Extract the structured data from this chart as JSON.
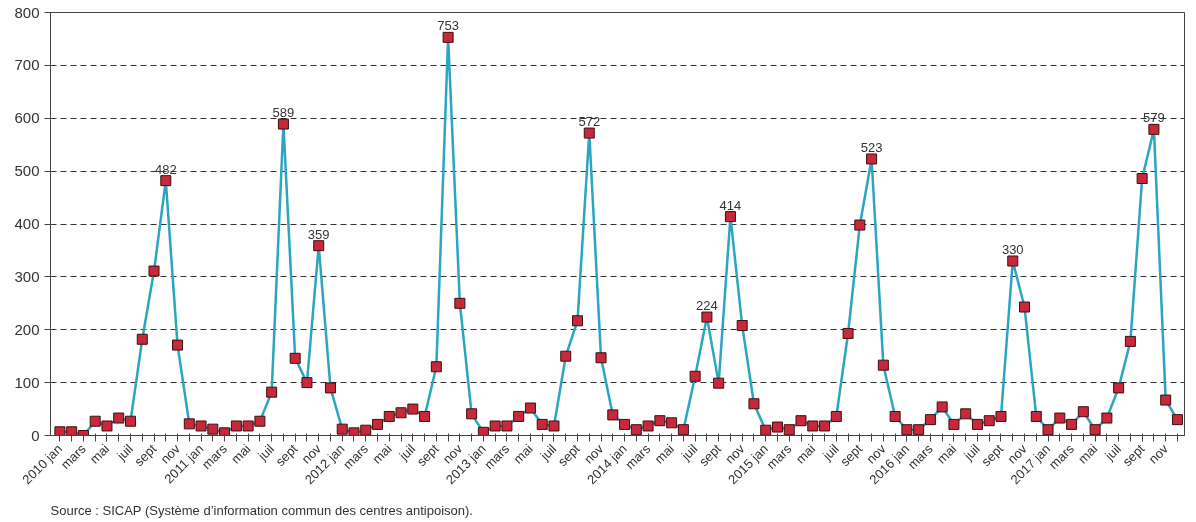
{
  "chart_data": {
    "type": "line",
    "categories": [
      "2010 jan",
      null,
      "mars",
      null,
      "mai",
      null,
      "juil",
      null,
      "sept",
      null,
      "nov",
      null,
      "2011 jan",
      null,
      "mars",
      null,
      "mai",
      null,
      "juil",
      null,
      "sept",
      null,
      "nov",
      null,
      "2012 jan",
      null,
      "mars",
      null,
      "mai",
      null,
      "juil",
      null,
      "sept",
      null,
      "nov",
      null,
      "2013 jan",
      null,
      "mars",
      null,
      "mai",
      null,
      "juil",
      null,
      "sept",
      null,
      "nov",
      null,
      "2014 jan",
      null,
      "mars",
      null,
      "mai",
      null,
      "juil",
      null,
      "sept",
      null,
      "nov",
      null,
      "2015 jan",
      null,
      "mars",
      null,
      "mai",
      null,
      "juil",
      null,
      "sept",
      null,
      "nov",
      null,
      "2016 jan",
      null,
      "mars",
      null,
      "mai",
      null,
      "juil",
      null,
      "sept",
      null,
      "nov",
      null,
      "2017 jan",
      null,
      "mars",
      null,
      "mai",
      null,
      "juil",
      null,
      "sept",
      null,
      "nov",
      null
    ],
    "series": [
      {
        "color": "#2aa5c2",
        "values": [
          7,
          7,
          0,
          27,
          18,
          33,
          27,
          182,
          311,
          482,
          171,
          22,
          18,
          12,
          5,
          18,
          18,
          27,
          82,
          589,
          146,
          100,
          359,
          90,
          12,
          5,
          10,
          21,
          36,
          43,
          50,
          36,
          130,
          753,
          250,
          41,
          6,
          18,
          18,
          36,
          52,
          21,
          18,
          150,
          217,
          572,
          147,
          39,
          21,
          11,
          18,
          28,
          24,
          11,
          112,
          224,
          99,
          414,
          208,
          60,
          10,
          16,
          11,
          28,
          18,
          18,
          36,
          193,
          398,
          523,
          133,
          36,
          11,
          11,
          30,
          54,
          21,
          41,
          21,
          28,
          36,
          330,
          243,
          36,
          11,
          33,
          21,
          45,
          11,
          33,
          90,
          178,
          486,
          579,
          67,
          30
        ],
        "value_labels": [
          null,
          null,
          null,
          null,
          null,
          null,
          null,
          null,
          null,
          "482",
          null,
          null,
          null,
          null,
          null,
          null,
          null,
          null,
          null,
          "589",
          null,
          null,
          "359",
          null,
          null,
          null,
          null,
          null,
          null,
          null,
          null,
          null,
          null,
          "753",
          null,
          null,
          null,
          null,
          null,
          null,
          null,
          null,
          null,
          null,
          null,
          "572",
          null,
          null,
          null,
          null,
          null,
          null,
          null,
          null,
          null,
          "224",
          null,
          "414",
          null,
          null,
          null,
          null,
          null,
          null,
          null,
          null,
          null,
          null,
          null,
          "523",
          null,
          null,
          null,
          null,
          null,
          null,
          null,
          null,
          null,
          null,
          null,
          "330",
          null,
          null,
          null,
          null,
          null,
          null,
          null,
          null,
          null,
          null,
          null,
          "579",
          null,
          null
        ]
      }
    ],
    "marker": "square",
    "ylim": [
      0,
      800
    ],
    "yticks": [
      0,
      100,
      200,
      300,
      400,
      500,
      600,
      700,
      800
    ],
    "grid": "y",
    "annotations": [
      "Source : SICAP (Système d’information commun des centres antipoison)."
    ]
  }
}
